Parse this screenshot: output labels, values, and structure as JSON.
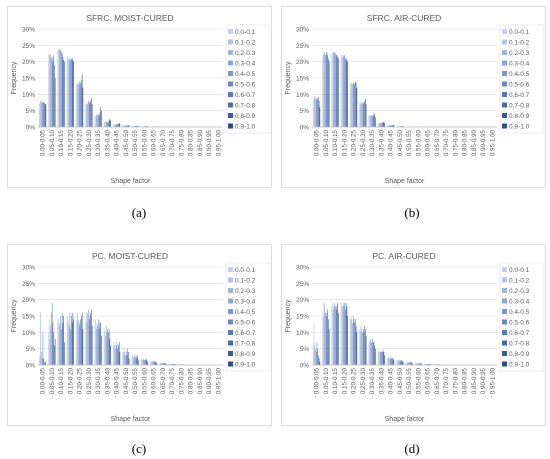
{
  "colors": {
    "bins": [
      "#c6d1e8",
      "#b3c3e2",
      "#a1b4da",
      "#8ea5d2",
      "#7c96ca",
      "#6a87c1",
      "#5878b8",
      "#4a69a9",
      "#3c5a97",
      "#2f4a82"
    ],
    "grid": "#d9d9d9",
    "axis": "#bfbfbf",
    "text": "#595959"
  },
  "legend": [
    "0.0-0.1",
    "0.1-0.2",
    "0.2-0.3",
    "0.3-0.4",
    "0.4-0.5",
    "0.5-0.6",
    "0.6-0.7",
    "0.7-0.8",
    "0.8-0.9",
    "0.9-1.0"
  ],
  "captions": [
    "(a)",
    "(b)",
    "(c)",
    "(d)"
  ],
  "chart_data": [
    {
      "type": "bar",
      "title": "SFRC. MOIST-CURED",
      "xlabel": "Shape factor",
      "ylabel": "Frequency",
      "ylim": [
        0,
        30
      ],
      "yticks": [
        "0%",
        "5%",
        "10%",
        "15%",
        "20%",
        "25%",
        "30%"
      ],
      "categories": [
        "0.00-0.05",
        "0.05-0.10",
        "0.10-0.15",
        "0.15-0.20",
        "0.20-0.25",
        "0.25-0.30",
        "0.30-0.35",
        "0.35-0.40",
        "0.40-0.45",
        "0.45-0.50",
        "0.50-0.55",
        "0.55-0.60",
        "0.60-0.65",
        "0.65-0.70",
        "0.70-0.75",
        "0.75-0.80",
        "0.80-0.85",
        "0.85-0.90",
        "0.90-0.95",
        "0.95-1.00"
      ],
      "series_values": [
        [
          7,
          7.5,
          8,
          8,
          7.5,
          7.5,
          7.5,
          7.5,
          7,
          7
        ],
        [
          22.5,
          22,
          22.5,
          22,
          21.5,
          21,
          20,
          22,
          19,
          15
        ],
        [
          23.5,
          24,
          23.5,
          24,
          23.5,
          23,
          22.5,
          21.5,
          20.5,
          20
        ],
        [
          21,
          21.5,
          21,
          20.5,
          21,
          20.5,
          21,
          21,
          20.5,
          20
        ],
        [
          13,
          13.5,
          13,
          13.5,
          14,
          13,
          13.5,
          14.5,
          16,
          12
        ],
        [
          7,
          7,
          7.5,
          7,
          8,
          7.5,
          7.5,
          8,
          9,
          7
        ],
        [
          3.5,
          3.5,
          3.5,
          4,
          3.5,
          4,
          3.5,
          4.5,
          6,
          5
        ],
        [
          1.5,
          1.5,
          1.5,
          1.5,
          2,
          1.5,
          1.5,
          2,
          2.5,
          2
        ],
        [
          0.8,
          0.8,
          0.8,
          0.8,
          1,
          0.8,
          0.8,
          1,
          1.2,
          1
        ],
        [
          0.4,
          0.4,
          0.4,
          0.4,
          0.5,
          0.4,
          0.4,
          0.5,
          0.6,
          0.5
        ],
        [
          0.3,
          0.3,
          0.3,
          0.3,
          0.3,
          0.3,
          0.3,
          0.3,
          0.4,
          0.3
        ],
        [
          0.2,
          0.2,
          0.2,
          0.2,
          0.2,
          0.2,
          0.2,
          0.2,
          0.3,
          0.2
        ],
        [
          0.1,
          0.1,
          0.1,
          0.1,
          0.1,
          0.1,
          0.1,
          0.1,
          0.2,
          0.1
        ],
        [
          0.1,
          0.1,
          0.1,
          0.1,
          0.1,
          0.1,
          0.1,
          0.1,
          0.1,
          0.1
        ],
        [
          0,
          0,
          0,
          0,
          0,
          0,
          0,
          0,
          0.1,
          0
        ],
        [
          0,
          0,
          0,
          0,
          0,
          0,
          0,
          0,
          0,
          0
        ],
        [
          0,
          0,
          0,
          0,
          0,
          0,
          0,
          0,
          0,
          0
        ],
        [
          0,
          0,
          0,
          0,
          0,
          0,
          0,
          0,
          0,
          0
        ],
        [
          0,
          0,
          0,
          0,
          0,
          0,
          0,
          0,
          0,
          0
        ],
        [
          0,
          0,
          0,
          0,
          0,
          0,
          0,
          0,
          0,
          0
        ]
      ]
    },
    {
      "type": "bar",
      "title": "SFRC. AIR-CURED",
      "xlabel": "Shape factor",
      "ylabel": "Frequency",
      "ylim": [
        0,
        30
      ],
      "yticks": [
        "0%",
        "5%",
        "10%",
        "15%",
        "20%",
        "25%",
        "30%"
      ],
      "categories": [
        "0.00-0.05",
        "0.05-0.10",
        "0.10-0.15",
        "0.15-0.20",
        "0.20-0.25",
        "0.25-0.30",
        "0.30-0.35",
        "0.35-0.40",
        "0.40-0.45",
        "0.45-0.50",
        "0.50-0.55",
        "0.55-0.60",
        "0.60-0.65",
        "0.65-0.70",
        "0.70-0.75",
        "0.75-0.80",
        "0.80-0.85",
        "0.85-0.90",
        "0.90-0.95",
        "0.95-1.00"
      ],
      "series_values": [
        [
          8.5,
          9,
          9.5,
          9,
          8.5,
          8.5,
          9,
          9,
          8,
          6
        ],
        [
          21,
          22,
          22.5,
          23,
          22,
          22.5,
          23,
          22,
          21,
          20
        ],
        [
          22.5,
          23,
          22.5,
          23,
          23,
          22.5,
          22,
          22,
          21.5,
          21
        ],
        [
          22,
          22,
          21.5,
          22,
          21.5,
          22,
          21,
          21,
          20.5,
          20
        ],
        [
          13,
          13.5,
          13.5,
          13,
          13.5,
          13.5,
          13,
          14,
          13.5,
          12
        ],
        [
          7.5,
          7.5,
          7,
          7.5,
          7.5,
          7,
          7.5,
          8,
          8.5,
          7
        ],
        [
          3.5,
          3.5,
          3.5,
          3.5,
          3.5,
          3.5,
          3.5,
          4,
          4,
          3
        ],
        [
          1.2,
          1.2,
          1.3,
          1.2,
          1.3,
          1.2,
          1.3,
          1.5,
          1.5,
          1.2
        ],
        [
          0.5,
          0.5,
          0.5,
          0.5,
          0.5,
          0.5,
          0.5,
          0.6,
          0.6,
          0.5
        ],
        [
          0.2,
          0.2,
          0.2,
          0.2,
          0.2,
          0.2,
          0.2,
          0.3,
          0.3,
          0.2
        ],
        [
          0.1,
          0.1,
          0.1,
          0.1,
          0.1,
          0.1,
          0.1,
          0.1,
          0.1,
          0.1
        ],
        [
          0.1,
          0.1,
          0.1,
          0.1,
          0.1,
          0.1,
          0.1,
          0.1,
          0.1,
          0.1
        ],
        [
          0,
          0,
          0,
          0,
          0,
          0,
          0,
          0,
          0,
          0
        ],
        [
          0,
          0,
          0,
          0,
          0,
          0,
          0,
          0,
          0,
          0
        ],
        [
          0,
          0,
          0,
          0,
          0,
          0,
          0,
          0,
          0,
          0
        ],
        [
          0,
          0,
          0,
          0,
          0,
          0,
          0,
          0,
          0,
          0
        ],
        [
          0,
          0,
          0,
          0,
          0,
          0,
          0,
          0,
          0,
          0
        ],
        [
          0,
          0,
          0,
          0,
          0,
          0,
          0,
          0,
          0,
          0
        ],
        [
          0,
          0,
          0,
          0,
          0,
          0,
          0,
          0,
          0,
          0
        ],
        [
          0,
          0,
          0,
          0,
          0,
          0,
          0,
          0,
          0,
          0
        ]
      ]
    },
    {
      "type": "bar",
      "title": "PC. MOIST-CURED",
      "xlabel": "Shape factor",
      "ylabel": "Frequency",
      "ylim": [
        0,
        30
      ],
      "yticks": [
        "0%",
        "5%",
        "10%",
        "15%",
        "20%",
        "25%",
        "30%"
      ],
      "categories": [
        "0.00-0.05",
        "0.05-0.10",
        "0.10-0.15",
        "0.15-0.20",
        "0.20-0.25",
        "0.25-0.30",
        "0.30-0.35",
        "0.35-0.40",
        "0.40-0.45",
        "0.45-0.50",
        "0.50-0.55",
        "0.55-0.60",
        "0.60-0.65",
        "0.65-0.70",
        "0.70-0.75",
        "0.75-0.80",
        "0.80-0.85",
        "0.85-0.90",
        "0.90-0.95",
        "0.95-1.00"
      ],
      "series_values": [
        [
          2,
          3,
          16,
          4,
          2,
          10,
          2,
          1,
          1,
          0.5
        ],
        [
          10,
          14,
          8,
          12,
          16,
          19,
          13,
          10,
          6,
          8
        ],
        [
          13,
          14,
          12,
          13,
          15,
          11,
          16,
          13,
          15,
          7
        ],
        [
          14,
          15,
          13,
          12,
          16,
          11,
          15,
          13,
          16,
          14
        ],
        [
          15,
          13,
          16,
          14,
          13,
          12,
          14,
          15,
          16,
          11
        ],
        [
          14,
          16,
          13,
          16,
          17,
          14,
          15,
          16,
          17,
          12
        ],
        [
          12,
          14,
          11,
          13,
          12,
          14,
          11,
          13,
          13,
          9
        ],
        [
          10,
          11,
          9,
          12,
          10,
          11,
          10,
          11,
          8,
          6
        ],
        [
          6,
          7,
          6,
          5,
          7,
          6,
          5,
          6,
          7,
          4
        ],
        [
          4,
          3,
          5,
          4,
          3,
          4,
          3,
          5,
          4,
          2
        ],
        [
          2.5,
          3,
          2.5,
          2,
          3,
          2.5,
          2,
          3,
          2.5,
          1.5
        ],
        [
          1.5,
          2,
          1.5,
          1.5,
          2,
          1.5,
          1.5,
          2,
          1.5,
          1
        ],
        [
          1,
          1,
          1,
          1.2,
          1,
          1,
          1.2,
          1,
          1,
          0.5
        ],
        [
          0.6,
          0.6,
          0.7,
          0.6,
          0.6,
          0.7,
          0.6,
          0.6,
          0.6,
          0.3
        ],
        [
          0.3,
          0.3,
          0.3,
          0.4,
          0.3,
          0.3,
          0.4,
          0.3,
          0.3,
          0.2
        ],
        [
          0.2,
          0.2,
          0.2,
          0.2,
          0.2,
          0.2,
          0.2,
          0.2,
          0.2,
          0.1
        ],
        [
          0.1,
          0.1,
          0.1,
          0.1,
          0.1,
          0.1,
          0.1,
          0.1,
          0.1,
          0
        ],
        [
          0,
          0,
          0,
          0,
          0,
          0,
          0,
          0,
          0,
          0
        ],
        [
          0,
          0,
          0,
          0,
          0,
          0,
          0,
          0,
          0,
          0
        ],
        [
          0,
          0,
          0,
          0,
          0,
          0,
          0,
          0,
          0,
          0
        ]
      ]
    },
    {
      "type": "bar",
      "title": "PC. AIR-CURED",
      "xlabel": "Shape factor",
      "ylabel": "Frequency",
      "ylim": [
        0,
        30
      ],
      "yticks": [
        "0%",
        "5%",
        "10%",
        "15%",
        "20%",
        "25%",
        "30%"
      ],
      "categories": [
        "0.00-0.05",
        "0.05-0.10",
        "0.10-0.15",
        "0.15-0.20",
        "0.20-0.25",
        "0.25-0.30",
        "0.30-0.35",
        "0.35-0.40",
        "0.40-0.45",
        "0.45-0.50",
        "0.50-0.55",
        "0.55-0.60",
        "0.60-0.65",
        "0.65-0.70",
        "0.70-0.75",
        "0.75-0.80",
        "0.80-0.85",
        "0.85-0.90",
        "0.90-0.95",
        "0.95-1.00"
      ],
      "series_values": [
        [
          7,
          13,
          6,
          5,
          4,
          7,
          5,
          3,
          2,
          1
        ],
        [
          16,
          15,
          18,
          19,
          16,
          15,
          16,
          17,
          14,
          11
        ],
        [
          18,
          19,
          17,
          18,
          19,
          18,
          17,
          18,
          19,
          16
        ],
        [
          18,
          19,
          18,
          19,
          18,
          19,
          17,
          19,
          18,
          15
        ],
        [
          14,
          15,
          14,
          13,
          15,
          14,
          13,
          14,
          12,
          10
        ],
        [
          11,
          10,
          12,
          11,
          10,
          11,
          10,
          12,
          11,
          9
        ],
        [
          7,
          8,
          7,
          8,
          7,
          8,
          7,
          7,
          6,
          5
        ],
        [
          4,
          4.5,
          4,
          4,
          4.5,
          4,
          4,
          4.5,
          4,
          3
        ],
        [
          2,
          2,
          2.5,
          2,
          2,
          2.5,
          2,
          2,
          2,
          1.5
        ],
        [
          1.5,
          1.5,
          1.2,
          1.5,
          1.5,
          1.2,
          1.5,
          1.5,
          1.2,
          1
        ],
        [
          0.8,
          0.8,
          0.9,
          0.8,
          0.8,
          0.9,
          0.8,
          0.8,
          0.8,
          0.5
        ],
        [
          0.5,
          0.5,
          0.5,
          0.5,
          0.5,
          0.5,
          0.5,
          0.5,
          0.5,
          0.3
        ],
        [
          0.3,
          0.3,
          0.3,
          0.3,
          0.3,
          0.3,
          0.3,
          0.3,
          0.3,
          0.2
        ],
        [
          0.2,
          0.2,
          0.2,
          0.2,
          0.2,
          0.2,
          0.2,
          0.2,
          0.2,
          0.1
        ],
        [
          0.1,
          0.1,
          0.1,
          0.1,
          0.1,
          0.1,
          0.1,
          0.1,
          0.1,
          0.1
        ],
        [
          0,
          0,
          0,
          0,
          0,
          0,
          0,
          0,
          0,
          0
        ],
        [
          0,
          0,
          0,
          0,
          0,
          0,
          0,
          0,
          0,
          0
        ],
        [
          0,
          0,
          0,
          0,
          0,
          0,
          0,
          0,
          0,
          0
        ],
        [
          0,
          0,
          0,
          0,
          0,
          0,
          0,
          0,
          0,
          0
        ],
        [
          0,
          0,
          0,
          0,
          0,
          0,
          0,
          0,
          0,
          0
        ]
      ]
    }
  ]
}
